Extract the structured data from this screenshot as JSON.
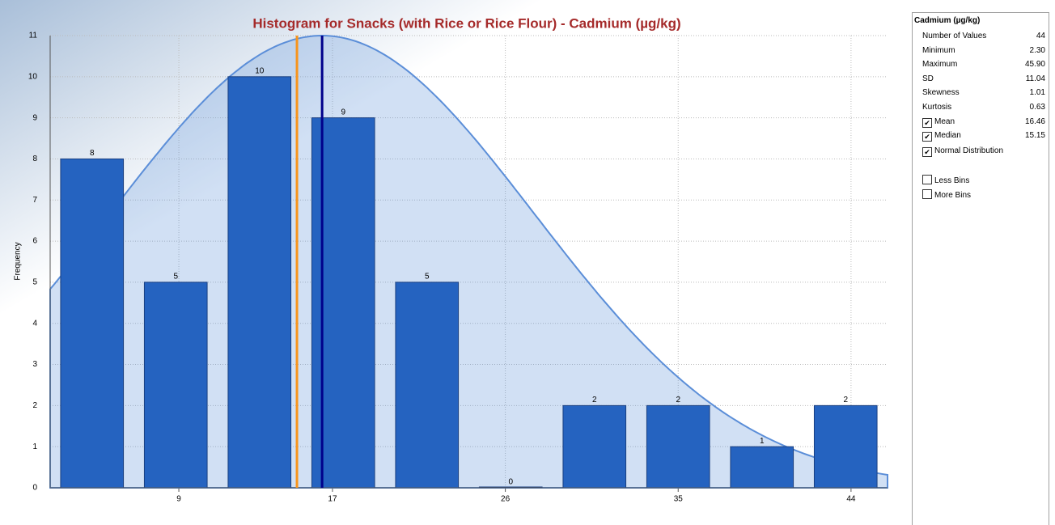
{
  "chart_data": {
    "type": "histogram",
    "title": "Histogram for Snacks (with Rice or Rice Flour) - Cadmium (µg/kg)",
    "ylabel": "Frequency",
    "bins": [
      2.3,
      6.66,
      11.02,
      15.38,
      19.74,
      24.1,
      28.46,
      32.82,
      37.18,
      41.54,
      45.9
    ],
    "values": [
      8,
      5,
      10,
      9,
      5,
      0,
      2,
      2,
      1,
      2
    ],
    "color": "#2563c0",
    "xlim": [
      2.3,
      45.9
    ],
    "xticks": [
      9,
      17,
      26,
      35,
      44
    ],
    "ylim": [
      0,
      11
    ],
    "yticks": [
      0,
      1,
      2,
      3,
      4,
      5,
      6,
      7,
      8,
      9,
      10,
      11
    ],
    "grid": true,
    "reference_lines": [
      {
        "value": 16.46,
        "color": "#00008b"
      },
      {
        "value": 15.15,
        "color": "#f7941d"
      }
    ],
    "normal_curve": {
      "mean": 16.46,
      "sd": 11.04,
      "color": "#5b8ed8"
    }
  },
  "stats_panel": {
    "title": "Cadmium (µg/kg)",
    "rows": [
      {
        "label": "Number of Values",
        "value": "44"
      },
      {
        "label": "Minimum",
        "value": "2.30"
      },
      {
        "label": "Maximum",
        "value": "45.90"
      },
      {
        "label": "SD",
        "value": "11.04"
      },
      {
        "label": "Skewness",
        "value": "1.01"
      },
      {
        "label": "Kurtosis",
        "value": "0.63"
      },
      {
        "label": "Mean",
        "value": "16.46",
        "checked": true
      },
      {
        "label": "Median",
        "value": "15.15",
        "checked": true
      }
    ],
    "checkboxes": [
      {
        "label": "Normal Distribution",
        "checked": true
      },
      {
        "label": "Less Bins",
        "checked": false
      },
      {
        "label": "More Bins",
        "checked": false
      }
    ]
  }
}
